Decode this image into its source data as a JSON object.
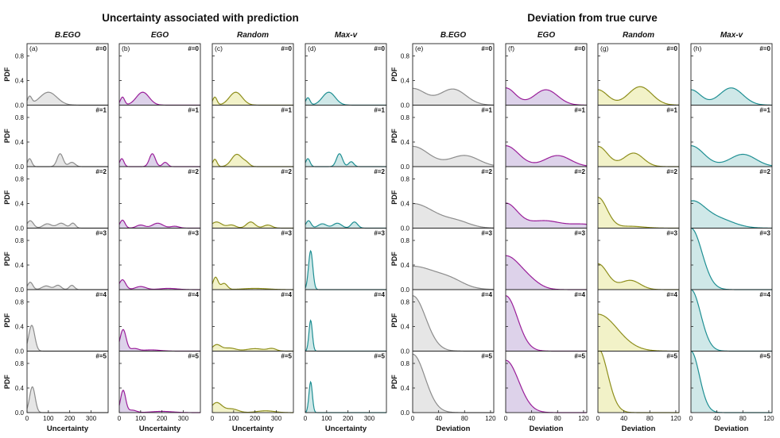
{
  "figure": {
    "left_title": "Uncertainty associated with prediction",
    "right_title": "Deviation from true curve",
    "ylabel": "PDF",
    "yticks": [
      "0.0",
      "0.4",
      "0.8"
    ],
    "colors": {
      "B.EGO": {
        "line": "#8c8c8c",
        "fill": "#e6e6e6"
      },
      "EGO": {
        "line": "#9a1f9a",
        "fill": "#ddd2ea"
      },
      "Random": {
        "line": "#8e8e1c",
        "fill": "#f2f2c8"
      },
      "Max-v": {
        "line": "#1f8f93",
        "fill": "#cfe8e8"
      }
    }
  },
  "chart_data": [
    {
      "type": "area",
      "panel": "(a)",
      "method": "B.EGO",
      "group": "uncertainty",
      "xlabel": "Uncertainty",
      "xticks": [
        0,
        100,
        200,
        300
      ],
      "xlim": [
        0,
        380
      ],
      "ylim": [
        0,
        1.0
      ],
      "rows": [
        {
          "label": "#=0",
          "peaks": [
            [
              12,
              0.13,
              10
            ],
            [
              100,
              0.21,
              40
            ]
          ]
        },
        {
          "label": "#=1",
          "peaks": [
            [
              12,
              0.13,
              10
            ],
            [
              155,
              0.21,
              14
            ],
            [
              210,
              0.07,
              15
            ]
          ]
        },
        {
          "label": "#=2",
          "peaks": [
            [
              15,
              0.12,
              15
            ],
            [
              95,
              0.07,
              20
            ],
            [
              160,
              0.08,
              20
            ],
            [
              215,
              0.08,
              12
            ]
          ]
        },
        {
          "label": "#=3",
          "peaks": [
            [
              15,
              0.12,
              12
            ],
            [
              90,
              0.06,
              20
            ],
            [
              145,
              0.07,
              15
            ],
            [
              210,
              0.07,
              12
            ]
          ]
        },
        {
          "label": "#=4",
          "peaks": [
            [
              22,
              0.42,
              14
            ]
          ]
        },
        {
          "label": "#=5",
          "peaks": [
            [
              25,
              0.42,
              13
            ]
          ]
        }
      ]
    },
    {
      "type": "area",
      "panel": "(b)",
      "method": "EGO",
      "group": "uncertainty",
      "xlabel": "Uncertainty",
      "xticks": [
        0,
        100,
        200,
        300
      ],
      "xlim": [
        0,
        380
      ],
      "ylim": [
        0,
        1.0
      ],
      "rows": [
        {
          "label": "#=0",
          "peaks": [
            [
              15,
              0.13,
              10
            ],
            [
              110,
              0.21,
              30
            ]
          ]
        },
        {
          "label": "#=1",
          "peaks": [
            [
              12,
              0.13,
              10
            ],
            [
              155,
              0.21,
              14
            ],
            [
              215,
              0.07,
              12
            ]
          ]
        },
        {
          "label": "#=2",
          "peaks": [
            [
              15,
              0.13,
              12
            ],
            [
              100,
              0.05,
              20
            ],
            [
              180,
              0.08,
              25
            ],
            [
              260,
              0.03,
              20
            ]
          ]
        },
        {
          "label": "#=3",
          "peaks": [
            [
              15,
              0.16,
              15
            ],
            [
              100,
              0.05,
              25
            ],
            [
              230,
              0.02,
              40
            ]
          ]
        },
        {
          "label": "#=4",
          "peaks": [
            [
              18,
              0.35,
              14
            ],
            [
              70,
              0.04,
              20
            ],
            [
              150,
              0.02,
              40
            ]
          ]
        },
        {
          "label": "#=5",
          "peaks": [
            [
              18,
              0.36,
              12
            ],
            [
              60,
              0.04,
              20
            ],
            [
              200,
              0.02,
              50
            ]
          ]
        }
      ]
    },
    {
      "type": "area",
      "panel": "(c)",
      "method": "Random",
      "group": "uncertainty",
      "xlabel": "Uncertainty",
      "xticks": [
        0,
        100,
        200,
        300
      ],
      "xlim": [
        0,
        380
      ],
      "ylim": [
        0,
        1.0
      ],
      "rows": [
        {
          "label": "#=0",
          "peaks": [
            [
              12,
              0.13,
              10
            ],
            [
              110,
              0.21,
              30
            ]
          ]
        },
        {
          "label": "#=1",
          "peaks": [
            [
              12,
              0.12,
              10
            ],
            [
              115,
              0.2,
              25
            ],
            [
              160,
              0.05,
              15
            ]
          ]
        },
        {
          "label": "#=2",
          "peaks": [
            [
              20,
              0.1,
              25
            ],
            [
              90,
              0.05,
              20
            ],
            [
              180,
              0.1,
              20
            ],
            [
              260,
              0.05,
              20
            ]
          ]
        },
        {
          "label": "#=3",
          "peaks": [
            [
              15,
              0.2,
              12
            ],
            [
              55,
              0.1,
              15
            ],
            [
              200,
              0.02,
              60
            ]
          ]
        },
        {
          "label": "#=4",
          "peaks": [
            [
              20,
              0.1,
              20
            ],
            [
              80,
              0.05,
              30
            ],
            [
              200,
              0.04,
              40
            ],
            [
              280,
              0.04,
              20
            ]
          ]
        },
        {
          "label": "#=5",
          "peaks": [
            [
              20,
              0.16,
              25
            ],
            [
              90,
              0.06,
              30
            ],
            [
              250,
              0.03,
              40
            ]
          ]
        }
      ]
    },
    {
      "type": "area",
      "panel": "(d)",
      "method": "Max-v",
      "group": "uncertainty",
      "xlabel": "Uncertainty",
      "xticks": [
        0,
        100,
        200,
        300
      ],
      "xlim": [
        0,
        380
      ],
      "ylim": [
        0,
        1.0
      ],
      "rows": [
        {
          "label": "#=0",
          "peaks": [
            [
              12,
              0.12,
              10
            ],
            [
              110,
              0.21,
              30
            ]
          ]
        },
        {
          "label": "#=1",
          "peaks": [
            [
              12,
              0.13,
              10
            ],
            [
              160,
              0.21,
              14
            ],
            [
              215,
              0.08,
              12
            ]
          ]
        },
        {
          "label": "#=2",
          "peaks": [
            [
              15,
              0.12,
              12
            ],
            [
              80,
              0.07,
              20
            ],
            [
              150,
              0.08,
              20
            ],
            [
              230,
              0.1,
              15
            ]
          ]
        },
        {
          "label": "#=3",
          "peaks": [
            [
              25,
              0.63,
              10
            ]
          ]
        },
        {
          "label": "#=4",
          "peaks": [
            [
              25,
              0.5,
              8
            ]
          ]
        },
        {
          "label": "#=5",
          "peaks": [
            [
              25,
              0.5,
              8
            ]
          ]
        }
      ]
    },
    {
      "type": "area",
      "panel": "(e)",
      "method": "B.EGO",
      "group": "deviation",
      "xlabel": "Deviation",
      "xticks": [
        0,
        40,
        80,
        120
      ],
      "xlim": [
        0,
        125
      ],
      "ylim": [
        0,
        1.0
      ],
      "rows": [
        {
          "label": "#=0",
          "peaks": [
            [
              0,
              0.27,
              20
            ],
            [
              62,
              0.26,
              20
            ]
          ]
        },
        {
          "label": "#=1",
          "peaks": [
            [
              0,
              0.33,
              25
            ],
            [
              80,
              0.18,
              22
            ]
          ]
        },
        {
          "label": "#=2",
          "peaks": [
            [
              0,
              0.4,
              35
            ],
            [
              70,
              0.08,
              20
            ]
          ]
        },
        {
          "label": "#=3",
          "peaks": [
            [
              0,
              0.38,
              40
            ],
            [
              60,
              0.08,
              20
            ]
          ]
        },
        {
          "label": "#=4",
          "peaks": [
            [
              0,
              0.9,
              20
            ]
          ]
        },
        {
          "label": "#=5",
          "peaks": [
            [
              0,
              0.95,
              19
            ]
          ]
        }
      ]
    },
    {
      "type": "area",
      "panel": "(f)",
      "method": "EGO",
      "group": "deviation",
      "xlabel": "Deviation",
      "xticks": [
        0,
        40,
        80,
        120
      ],
      "xlim": [
        0,
        125
      ],
      "ylim": [
        0,
        1.0
      ],
      "rows": [
        {
          "label": "#=0",
          "peaks": [
            [
              0,
              0.28,
              15
            ],
            [
              62,
              0.25,
              18
            ]
          ]
        },
        {
          "label": "#=1",
          "peaks": [
            [
              0,
              0.34,
              20
            ],
            [
              80,
              0.18,
              20
            ]
          ]
        },
        {
          "label": "#=2",
          "peaks": [
            [
              0,
              0.4,
              18
            ],
            [
              60,
              0.12,
              25
            ],
            [
              120,
              0.06,
              20
            ]
          ]
        },
        {
          "label": "#=3",
          "peaks": [
            [
              0,
              0.55,
              25
            ],
            [
              40,
              0.05,
              15
            ]
          ]
        },
        {
          "label": "#=4",
          "peaks": [
            [
              0,
              0.9,
              18
            ]
          ]
        },
        {
          "label": "#=5",
          "peaks": [
            [
              0,
              0.85,
              20
            ]
          ]
        }
      ]
    },
    {
      "type": "area",
      "panel": "(g)",
      "method": "Random",
      "group": "deviation",
      "xlabel": "Deviation",
      "xticks": [
        0,
        40,
        80,
        120
      ],
      "xlim": [
        0,
        125
      ],
      "ylim": [
        0,
        1.0
      ],
      "rows": [
        {
          "label": "#=0",
          "peaks": [
            [
              0,
              0.25,
              15
            ],
            [
              65,
              0.3,
              18
            ]
          ]
        },
        {
          "label": "#=1",
          "peaks": [
            [
              0,
              0.33,
              15
            ],
            [
              55,
              0.22,
              15
            ]
          ]
        },
        {
          "label": "#=2",
          "peaks": [
            [
              0,
              0.5,
              14
            ],
            [
              50,
              0.03,
              20
            ]
          ]
        },
        {
          "label": "#=3",
          "peaks": [
            [
              0,
              0.42,
              15
            ],
            [
              50,
              0.15,
              15
            ]
          ]
        },
        {
          "label": "#=4",
          "peaks": [
            [
              0,
              0.6,
              30
            ]
          ]
        },
        {
          "label": "#=5",
          "peaks": [
            [
              0,
              1.05,
              15
            ]
          ]
        }
      ]
    },
    {
      "type": "area",
      "panel": "(h)",
      "method": "Max-v",
      "group": "deviation",
      "xlabel": "Deviation",
      "xticks": [
        0,
        40,
        80,
        120
      ],
      "xlim": [
        0,
        125
      ],
      "ylim": [
        0,
        1.0
      ],
      "rows": [
        {
          "label": "#=0",
          "peaks": [
            [
              0,
              0.25,
              15
            ],
            [
              62,
              0.28,
              18
            ]
          ]
        },
        {
          "label": "#=1",
          "peaks": [
            [
              0,
              0.34,
              20
            ],
            [
              80,
              0.2,
              20
            ]
          ]
        },
        {
          "label": "#=2",
          "peaks": [
            [
              0,
              0.4,
              20
            ],
            [
              40,
              0.15,
              25
            ]
          ]
        },
        {
          "label": "#=3",
          "peaks": [
            [
              0,
              1.0,
              17
            ]
          ]
        },
        {
          "label": "#=4",
          "peaks": [
            [
              0,
              1.0,
              15
            ]
          ]
        },
        {
          "label": "#=5",
          "peaks": [
            [
              0,
              1.0,
              13
            ]
          ]
        }
      ]
    }
  ]
}
